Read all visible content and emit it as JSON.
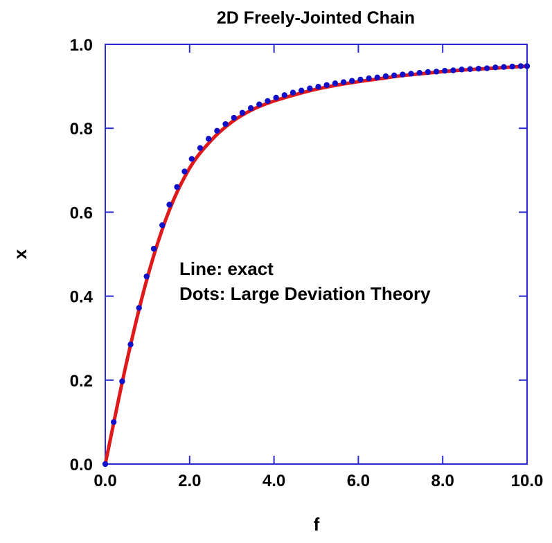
{
  "chart_data": {
    "type": "line",
    "title": "2D Freely-Jointed Chain",
    "xlabel": "f",
    "ylabel": "x",
    "xlim": [
      0,
      10
    ],
    "ylim": [
      0,
      1
    ],
    "xticks": [
      "0.0",
      "2.0",
      "4.0",
      "6.0",
      "8.0",
      "10.0"
    ],
    "yticks": [
      "0.0",
      "0.2",
      "0.4",
      "0.6",
      "0.8",
      "1.0"
    ],
    "grid": false,
    "annotations": [
      "Line: exact",
      "Dots: Large Deviation Theory"
    ],
    "colors": {
      "line": "#e0191b",
      "dots": "#1010c8",
      "frame": "#2a2ad0"
    },
    "series": [
      {
        "name": "exact",
        "style": "line",
        "x": [
          0,
          0.5,
          1.0,
          1.5,
          2.0,
          2.5,
          3.0,
          3.5,
          4.0,
          4.5,
          5.0,
          5.5,
          6.0,
          6.5,
          7.0,
          7.5,
          8.0,
          8.5,
          9.0,
          9.5,
          10.0
        ],
        "y": [
          0,
          0.24,
          0.445,
          0.6,
          0.705,
          0.77,
          0.815,
          0.845,
          0.865,
          0.88,
          0.893,
          0.903,
          0.911,
          0.918,
          0.925,
          0.93,
          0.935,
          0.939,
          0.942,
          0.945,
          0.948
        ]
      },
      {
        "name": "Large Deviation Theory",
        "style": "dots",
        "x": [
          0,
          0.2,
          0.4,
          0.6,
          0.8,
          0.98,
          1.15,
          1.35,
          1.52,
          1.7,
          1.88,
          2.05,
          2.25,
          2.45,
          2.65,
          2.85,
          3.05,
          3.25,
          3.45,
          3.65,
          3.85,
          4.05,
          4.25,
          4.45,
          4.65,
          4.85,
          5.05,
          5.25,
          5.45,
          5.65,
          5.85,
          6.05,
          6.25,
          6.45,
          6.65,
          6.85,
          7.05,
          7.25,
          7.45,
          7.65,
          7.85,
          8.05,
          8.25,
          8.45,
          8.65,
          8.85,
          9.05,
          9.25,
          9.45,
          9.65,
          9.85,
          10.0
        ],
        "y": [
          0,
          0.1,
          0.197,
          0.285,
          0.372,
          0.447,
          0.513,
          0.569,
          0.618,
          0.66,
          0.697,
          0.727,
          0.753,
          0.775,
          0.794,
          0.81,
          0.825,
          0.837,
          0.848,
          0.857,
          0.865,
          0.873,
          0.879,
          0.885,
          0.89,
          0.895,
          0.899,
          0.903,
          0.907,
          0.91,
          0.913,
          0.916,
          0.919,
          0.921,
          0.924,
          0.926,
          0.928,
          0.93,
          0.932,
          0.934,
          0.935,
          0.937,
          0.938,
          0.94,
          0.941,
          0.942,
          0.943,
          0.945,
          0.946,
          0.947,
          0.948,
          0.948
        ]
      }
    ]
  }
}
